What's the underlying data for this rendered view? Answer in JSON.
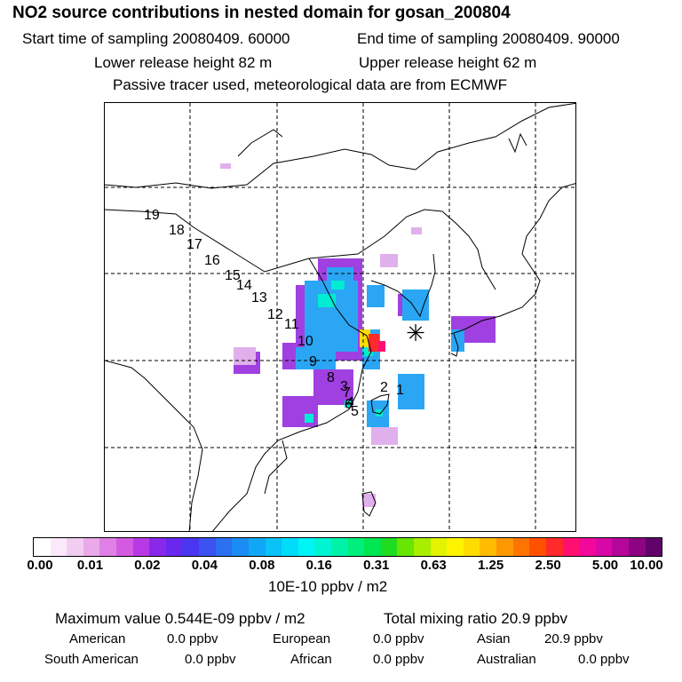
{
  "header": {
    "title": "NO2 source contributions in nested domain for gosan_200804",
    "start_label": "Start time of sampling 20080409. 60000",
    "end_label": "End time of sampling 20080409. 90000",
    "lower_release": "Lower release height   82 m",
    "upper_release": "Upper release height   62 m",
    "tracer_note": "Passive tracer used, meteorological data are from ECMWF"
  },
  "chart_data": {
    "type": "heatmap",
    "title": "NO2 source contributions in nested domain for gosan_200804",
    "colorbar_unit": "10E-10 ppbv / m2",
    "colorbar_ticks": [
      "0.00",
      "0.01",
      "0.02",
      "0.04",
      "0.08",
      "0.16",
      "0.31",
      "0.63",
      "1.25",
      "2.50",
      "5.00",
      "10.00"
    ],
    "colorbar_colors": [
      "#ffffff",
      "#fbe8fb",
      "#f2cdf2",
      "#eaaaea",
      "#e080e6",
      "#d45ae2",
      "#b838e6",
      "#8a28ea",
      "#6a28ee",
      "#4a36f0",
      "#3c52f0",
      "#2c70f2",
      "#1a8cf4",
      "#10a8f6",
      "#08c2f8",
      "#00dcfa",
      "#00f4f6",
      "#00f4d2",
      "#00f2a8",
      "#00ee7c",
      "#00e650",
      "#20dc20",
      "#66e600",
      "#a8ee00",
      "#e2f200",
      "#fef400",
      "#ffdc00",
      "#ffbc00",
      "#ff9800",
      "#ff7400",
      "#ff5000",
      "#ff2a2a",
      "#ff1070",
      "#f2089a",
      "#d808a6",
      "#b4069a",
      "#8c0482",
      "#60026a"
    ],
    "trajectory_points": [
      "19",
      "18",
      "17",
      "16",
      "15",
      "14",
      "13",
      "12",
      "11",
      "10",
      "9",
      "8",
      "7",
      "6",
      "5",
      "4",
      "3",
      "2",
      "1"
    ],
    "receptor_symbol": "✳",
    "maximum_value": "Maximum value  0.544E-09 ppbv / m2",
    "total_mixing_ratio": "Total mixing ratio      20.9 ppbv",
    "sources": {
      "american": {
        "label": "American",
        "value": "0.0 ppbv"
      },
      "european": {
        "label": "European",
        "value": "0.0 ppbv"
      },
      "asian": {
        "label": "Asian",
        "value": "20.9 ppbv"
      },
      "south_american": {
        "label": "South American",
        "value": "0.0 ppbv"
      },
      "african": {
        "label": "African",
        "value": "0.0 ppbv"
      },
      "australian": {
        "label": "Australian",
        "value": "0.0 ppbv"
      }
    }
  }
}
